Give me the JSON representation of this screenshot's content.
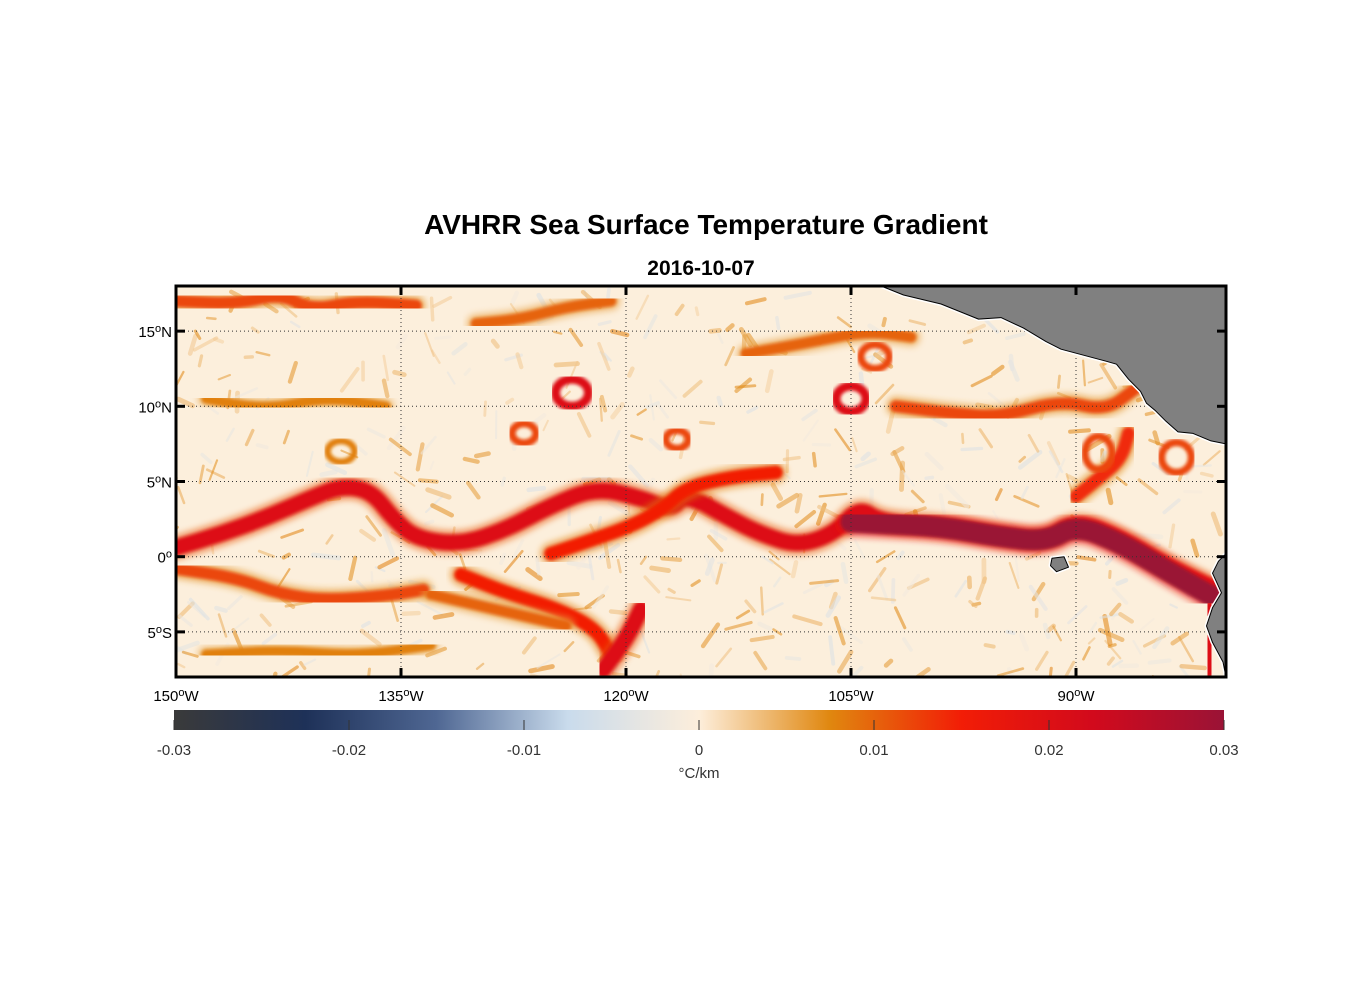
{
  "map": {
    "title": "AVHRR Sea Surface Temperature Gradient",
    "subtitle": "2016-10-07",
    "extent": {
      "lon": [
        -150,
        -80
      ],
      "lat": [
        -8,
        18
      ]
    },
    "lon_ticks": [
      {
        "value": -150,
        "deg": "150",
        "hem": "W"
      },
      {
        "value": -135,
        "deg": "135",
        "hem": "W"
      },
      {
        "value": -120,
        "deg": "120",
        "hem": "W"
      },
      {
        "value": -105,
        "deg": "105",
        "hem": "W"
      },
      {
        "value": -90,
        "deg": "90",
        "hem": "W"
      }
    ],
    "lat_ticks": [
      {
        "value": 15,
        "deg": "15",
        "hem": "N"
      },
      {
        "value": 10,
        "deg": "10",
        "hem": "N"
      },
      {
        "value": 5,
        "deg": "5",
        "hem": "N"
      },
      {
        "value": 0,
        "deg": "0",
        "hem": ""
      },
      {
        "value": -5,
        "deg": "5",
        "hem": "S"
      }
    ],
    "grid": "dotted",
    "land_color": "#808080",
    "ocean_background": "#fcefdc"
  },
  "colorbar": {
    "range": [
      -0.03,
      0.03
    ],
    "tick_labels": [
      "-0.03",
      "-0.02",
      "-0.01",
      "0",
      "0.01",
      "0.02",
      "0.03"
    ],
    "label": "°C/km",
    "orientation": "horizontal",
    "placement": "below",
    "colors": [
      "#3a3a3a",
      "#1e3158",
      "#4f6793",
      "#c9dbec",
      "#fdeedb",
      "#e0870f",
      "#f21d06",
      "#d20a1c",
      "#9a1336"
    ]
  },
  "features": {
    "fronts": [
      {
        "name": "equatorial-front",
        "strength": 0.02,
        "path": [
          [
            -150,
            0.6
          ],
          [
            -147,
            1.5
          ],
          [
            -144,
            2.6
          ],
          [
            -141,
            3.9
          ],
          [
            -139,
            4.7
          ],
          [
            -137,
            4.4
          ],
          [
            -135.5,
            2.5
          ],
          [
            -134,
            1.2
          ],
          [
            -131,
            0.8
          ],
          [
            -128,
            1.8
          ],
          [
            -125,
            3.4
          ],
          [
            -122,
            4.6
          ],
          [
            -119,
            3.9
          ],
          [
            -117,
            3.1
          ],
          [
            -116,
            4.2
          ],
          [
            -113,
            2.5
          ],
          [
            -111,
            1.5
          ],
          [
            -108.5,
            0.7
          ],
          [
            -106,
            1.6
          ],
          [
            -104.5,
            3.3
          ],
          [
            -103,
            2.3
          ],
          [
            -99,
            2.1
          ],
          [
            -95,
            1.4
          ],
          [
            -92,
            1.0
          ],
          [
            -90,
            2.4
          ],
          [
            -87,
            1.2
          ],
          [
            -84,
            -0.6
          ],
          [
            -81,
            -2.0
          ]
        ]
      },
      {
        "name": "equatorial-front-core",
        "strength": 0.03,
        "path": [
          [
            -105,
            2.3
          ],
          [
            -103,
            2.2
          ],
          [
            -99,
            2.0
          ],
          [
            -95,
            1.3
          ],
          [
            -92,
            1.0
          ],
          [
            -90,
            2.1
          ],
          [
            -87,
            0.9
          ],
          [
            -84,
            -0.9
          ],
          [
            -81,
            -2.6
          ]
        ]
      },
      {
        "name": "loop-front",
        "strength": 0.015,
        "path": [
          [
            -125,
            0.2
          ],
          [
            -122,
            1.2
          ],
          [
            -119.5,
            2.1
          ],
          [
            -117.5,
            3.2
          ],
          [
            -116,
            4.6
          ],
          [
            -113,
            5.3
          ],
          [
            -110,
            5.6
          ]
        ]
      },
      {
        "name": "south-front-west",
        "strength": 0.012,
        "path": [
          [
            -150,
            -0.8
          ],
          [
            -146,
            -1.4
          ],
          [
            -143,
            -2.5
          ],
          [
            -140,
            -2.9
          ],
          [
            -136,
            -2.6
          ],
          [
            -133.5,
            -2.2
          ]
        ]
      },
      {
        "name": "south-front-mid",
        "strength": 0.015,
        "path": [
          [
            -131,
            -1.2
          ],
          [
            -128,
            -2.4
          ],
          [
            -124.5,
            -3.5
          ],
          [
            -122,
            -4.8
          ],
          [
            -121,
            -6.5
          ]
        ]
      },
      {
        "name": "south-front-branch",
        "strength": 0.01,
        "path": [
          [
            -133,
            -2.5
          ],
          [
            -130,
            -3.2
          ],
          [
            -127,
            -3.9
          ],
          [
            -124,
            -4.6
          ]
        ]
      },
      {
        "name": "south-front-east",
        "strength": 0.02,
        "path": [
          [
            -119,
            -3.5
          ],
          [
            -120,
            -5.5
          ],
          [
            -121.5,
            -7.5
          ]
        ]
      },
      {
        "name": "coastal-front",
        "strength": 0.02,
        "path": [
          [
            -81,
            -3.5
          ],
          [
            -81,
            -5.5
          ],
          [
            -81.2,
            -7.5
          ]
        ]
      },
      {
        "name": "north-front",
        "strength": 0.012,
        "path": [
          [
            -150,
            17.0
          ],
          [
            -146,
            16.8
          ],
          [
            -143,
            17.5
          ],
          [
            -141,
            16.4
          ],
          [
            -138,
            17.0
          ],
          [
            -134,
            16.7
          ]
        ]
      },
      {
        "name": "north-front-central",
        "strength": 0.01,
        "path": [
          [
            -130,
            15.5
          ],
          [
            -127,
            15.8
          ],
          [
            -124,
            16.6
          ],
          [
            -121,
            17.0
          ]
        ]
      },
      {
        "name": "tehuantepec-front",
        "strength": 0.012,
        "path": [
          [
            -102,
            10.0
          ],
          [
            -98,
            9.5
          ],
          [
            -95,
            9.3
          ],
          [
            -91,
            10.4
          ],
          [
            -88,
            9.7
          ],
          [
            -86,
            11.2
          ]
        ]
      },
      {
        "name": "upper-east-front",
        "strength": 0.01,
        "path": [
          [
            -112,
            13.5
          ],
          [
            -108,
            14.2
          ],
          [
            -104,
            15.0
          ],
          [
            -101,
            14.6
          ]
        ]
      },
      {
        "name": "mid-front-west",
        "strength": 0.008,
        "path": [
          [
            -148,
            10.5
          ],
          [
            -144,
            9.8
          ],
          [
            -140,
            10.6
          ],
          [
            -136,
            10.0
          ]
        ]
      },
      {
        "name": "south-faint-front",
        "strength": 0.008,
        "path": [
          [
            -148,
            -6.5
          ],
          [
            -143,
            -6.2
          ],
          [
            -138,
            -6.6
          ],
          [
            -133,
            -5.9
          ]
        ]
      },
      {
        "name": "far-east-loop",
        "strength": 0.014,
        "path": [
          [
            -90,
            4.0
          ],
          [
            -88.5,
            5.2
          ],
          [
            -87,
            6.5
          ],
          [
            -86.5,
            8.2
          ]
        ]
      }
    ],
    "eddies": [
      {
        "name": "eddy-a",
        "lon": -123.6,
        "lat": 10.9,
        "rx": 1.1,
        "ry": 0.9,
        "strength": 0.02
      },
      {
        "name": "eddy-b",
        "lon": -105.0,
        "lat": 10.5,
        "rx": 1.0,
        "ry": 0.85,
        "strength": 0.02
      },
      {
        "name": "eddy-c",
        "lon": -103.4,
        "lat": 13.3,
        "rx": 0.95,
        "ry": 0.8,
        "strength": 0.012
      },
      {
        "name": "eddy-d",
        "lon": -126.8,
        "lat": 8.2,
        "rx": 0.8,
        "ry": 0.65,
        "strength": 0.012
      },
      {
        "name": "eddy-e",
        "lon": -116.6,
        "lat": 7.8,
        "rx": 0.75,
        "ry": 0.6,
        "strength": 0.012
      },
      {
        "name": "eddy-f",
        "lon": -88.5,
        "lat": 6.9,
        "rx": 0.9,
        "ry": 1.1,
        "strength": 0.012
      },
      {
        "name": "eddy-g",
        "lon": -83.3,
        "lat": 6.6,
        "rx": 1.0,
        "ry": 1.0,
        "strength": 0.012
      },
      {
        "name": "eddy-h",
        "lon": -139.0,
        "lat": 7.0,
        "rx": 0.9,
        "ry": 0.7,
        "strength": 0.008
      }
    ],
    "land": [
      {
        "name": "central-america",
        "path": [
          [
            -103,
            18
          ],
          [
            -101.5,
            17.4
          ],
          [
            -99,
            16.8
          ],
          [
            -96.5,
            15.8
          ],
          [
            -95,
            15.9
          ],
          [
            -93.5,
            15.2
          ],
          [
            -92,
            14.3
          ],
          [
            -91,
            13.8
          ],
          [
            -89.5,
            13.4
          ],
          [
            -88,
            13.0
          ],
          [
            -87.3,
            12.8
          ],
          [
            -86.5,
            11.8
          ],
          [
            -85.7,
            11.0
          ],
          [
            -85.3,
            10.2
          ],
          [
            -84.7,
            9.7
          ],
          [
            -84,
            9.0
          ],
          [
            -83.2,
            8.3
          ],
          [
            -82.2,
            8.2
          ],
          [
            -81,
            7.7
          ],
          [
            -80,
            7.5
          ],
          [
            -80,
            18
          ]
        ]
      },
      {
        "name": "south-america",
        "path": [
          [
            -80,
            0.2
          ],
          [
            -80.5,
            -0.3
          ],
          [
            -80.9,
            -1.1
          ],
          [
            -80.3,
            -2.4
          ],
          [
            -80.9,
            -3.4
          ],
          [
            -81.3,
            -4.6
          ],
          [
            -80.9,
            -5.7
          ],
          [
            -80.2,
            -7.0
          ],
          [
            -80,
            -8
          ]
        ]
      },
      {
        "name": "galapagos",
        "path": [
          [
            -91.6,
            -0.1
          ],
          [
            -90.8,
            0.0
          ],
          [
            -90.5,
            -0.7
          ],
          [
            -91.3,
            -1.0
          ],
          [
            -91.7,
            -0.6
          ]
        ]
      }
    ]
  }
}
